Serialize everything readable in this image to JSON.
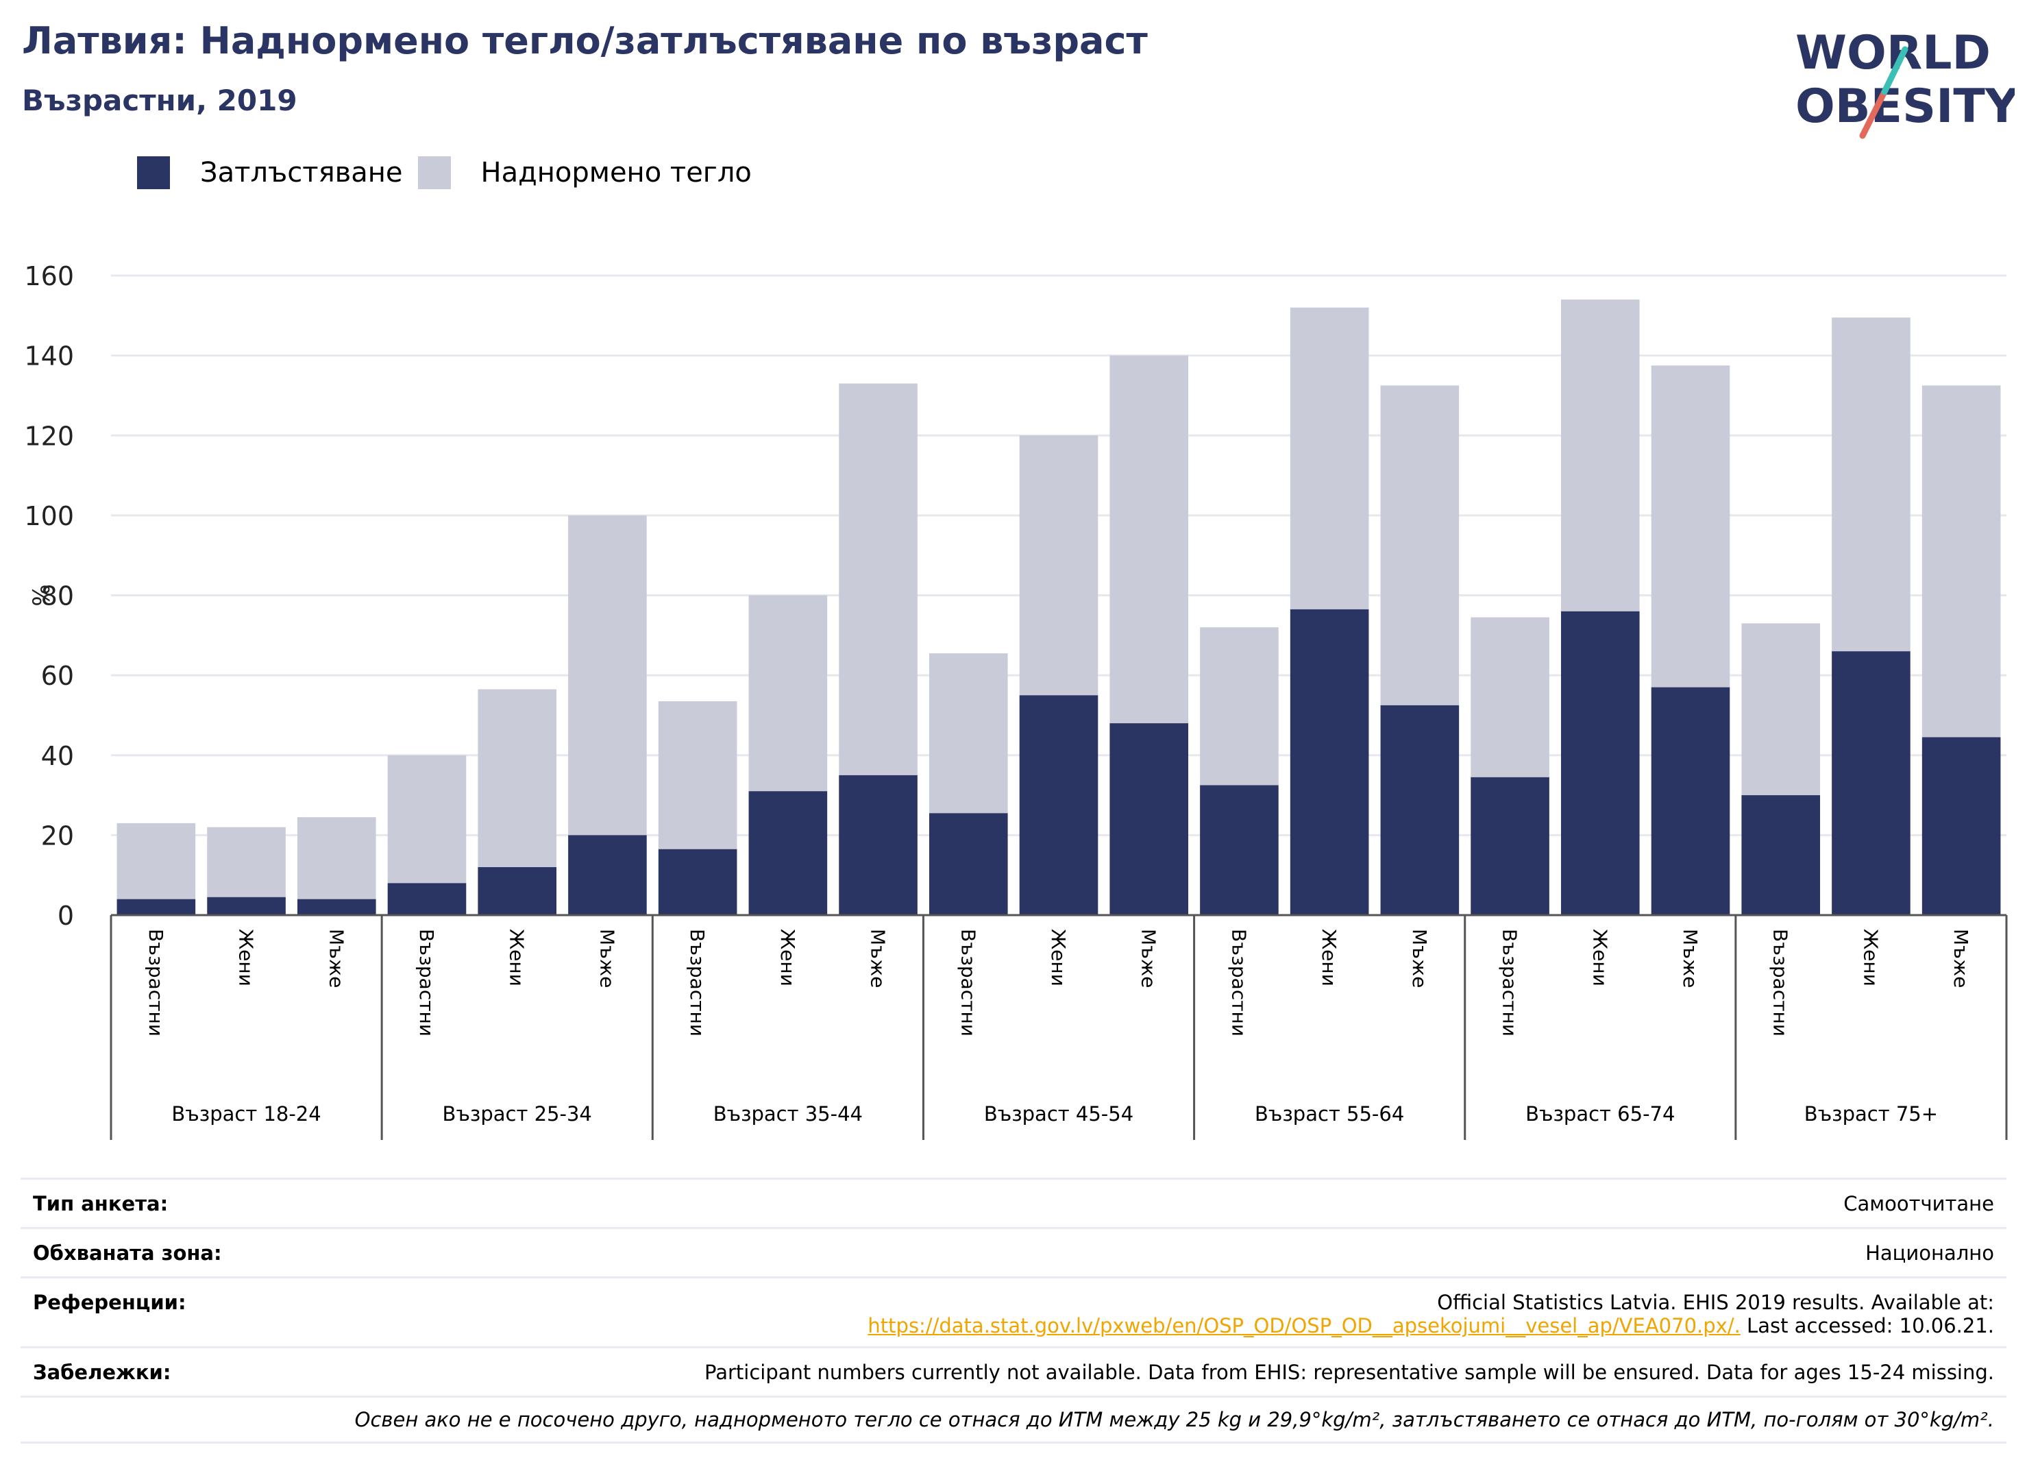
{
  "header": {
    "title": "Латвия: Наднормено тегло/затлъстяване по възраст",
    "subtitle": "Възрастни, 2019"
  },
  "logo": {
    "line1": "WORLD",
    "line2": "OBESITY"
  },
  "colors": {
    "obesity": "#2a3563",
    "overweight": "#c9ccd8",
    "text": "#2a3563",
    "link": "#f0a500"
  },
  "legend": {
    "obesity_label": "Затлъстяване",
    "overweight_label": "Наднормено тегло"
  },
  "chart_data": {
    "type": "bar",
    "stacked": true,
    "ylabel": "%",
    "ylim": [
      0,
      160
    ],
    "yticks": [
      0,
      20,
      40,
      60,
      80,
      100,
      120,
      140,
      160
    ],
    "grid": true,
    "legend_position": "top-left",
    "groups": [
      "Възраст 18-24",
      "Възраст 25-34",
      "Възраст 35-44",
      "Възраст 45-54",
      "Възраст 55-64",
      "Възраст 65-74",
      "Възраст 75+"
    ],
    "subcategories": [
      "Възрастни",
      "Жени",
      "Мъже"
    ],
    "series": [
      {
        "name": "Затлъстяване",
        "values": [
          4,
          4.5,
          4,
          8,
          12,
          20,
          16.5,
          31,
          35,
          25.5,
          55,
          48,
          32.5,
          76.5,
          52.5,
          34.5,
          76,
          57,
          30,
          66,
          44.5
        ]
      },
      {
        "name": "Наднормено тегло",
        "values": [
          19,
          17.5,
          20.5,
          32,
          44.5,
          80,
          37,
          49,
          98,
          40,
          65,
          92,
          39.5,
          75.5,
          80,
          40,
          78,
          80.5,
          43,
          83.5,
          88
        ]
      }
    ]
  },
  "footer": {
    "survey_type_label": "Тип анкета:",
    "survey_type_value": "Самоотчитане",
    "coverage_label": "Обхваната зона:",
    "coverage_value": "Национално",
    "references_label": "Референции:",
    "references_line1": "Official Statistics Latvia. EHIS 2019 results. Available at:",
    "references_link": "https://data.stat.gov.lv/pxweb/en/OSP_OD/OSP_OD__apsekojumi__vesel_ap/VEA070.px/.",
    "references_tail": " Last accessed: 10.06.21.",
    "notes_label": "Забележки:",
    "notes_value": "Participant numbers currently not available. Data from EHIS: representative sample will be ensured. Data for ages 15-24 missing.",
    "definition": "Освен ако не е посочено друго, наднорменото тегло се отнася до ИТМ между 25 kg и 29,9°kg/m², затлъстяването се отнася до ИТМ, по-голям от 30°kg/m²."
  }
}
